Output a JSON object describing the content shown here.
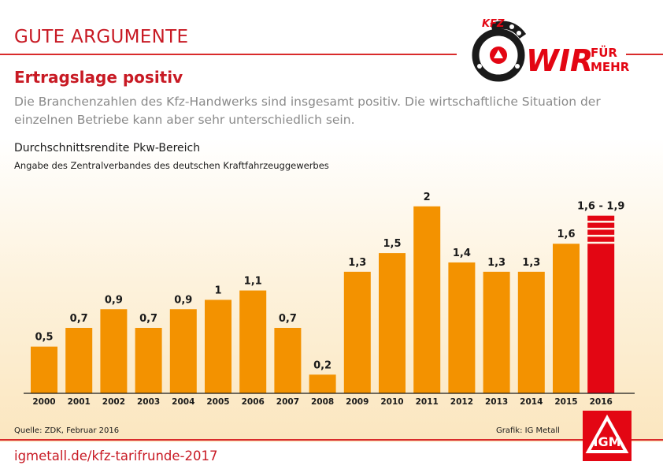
{
  "header": {
    "section_label": "GUTE ARGUMENTE",
    "logo": {
      "kfz": "KFZ",
      "wir": "WIR",
      "fuer": "FÜR",
      "mehr": "MEHR"
    },
    "headline": "Ertragslage positiv",
    "subtext": "Die Branchenzahlen des Kfz-Handwerks sind insgesamt positiv. Die wirtschaftliche Situation der einzelnen Betriebe kann aber sehr unterschiedlich sein."
  },
  "chart_data": {
    "type": "bar",
    "title": "Durchschnittsrendite Pkw-Bereich",
    "subtitle": "Angabe des Zentralverbandes des deutschen Kraftfahrzeuggewerbes",
    "categories": [
      "2000",
      "2001",
      "2002",
      "2003",
      "2004",
      "2005",
      "2006",
      "2007",
      "2008",
      "2009",
      "2010",
      "2011",
      "2012",
      "2013",
      "2014",
      "2015",
      "2016"
    ],
    "values": [
      0.5,
      0.7,
      0.9,
      0.7,
      0.9,
      1,
      1.1,
      0.7,
      0.2,
      1.3,
      1.5,
      2,
      1.4,
      1.3,
      1.3,
      1.6,
      1.9
    ],
    "value_labels": [
      "0,5",
      "0,7",
      "0,9",
      "0,7",
      "0,9",
      "1",
      "1,1",
      "0,7",
      "0,2",
      "1,3",
      "1,5",
      "2",
      "1,4",
      "1,3",
      "1,3",
      "1,6",
      "1,6 - 1,9"
    ],
    "range_2016": [
      1.6,
      1.9
    ],
    "ylim": [
      0,
      2.15
    ],
    "colors": {
      "bar": "#f39200",
      "forecast": "#e30613",
      "baseline": "#1a1a1a"
    }
  },
  "footer": {
    "source": "Quelle: ZDK, Februar 2016",
    "credit": "Grafik: IG Metall",
    "url": "igmetall.de/kfz-tarifrunde-2017",
    "org_logo": "IGM"
  },
  "colors": {
    "accent": "#c81a24",
    "subtext": "#8a8a8a"
  }
}
